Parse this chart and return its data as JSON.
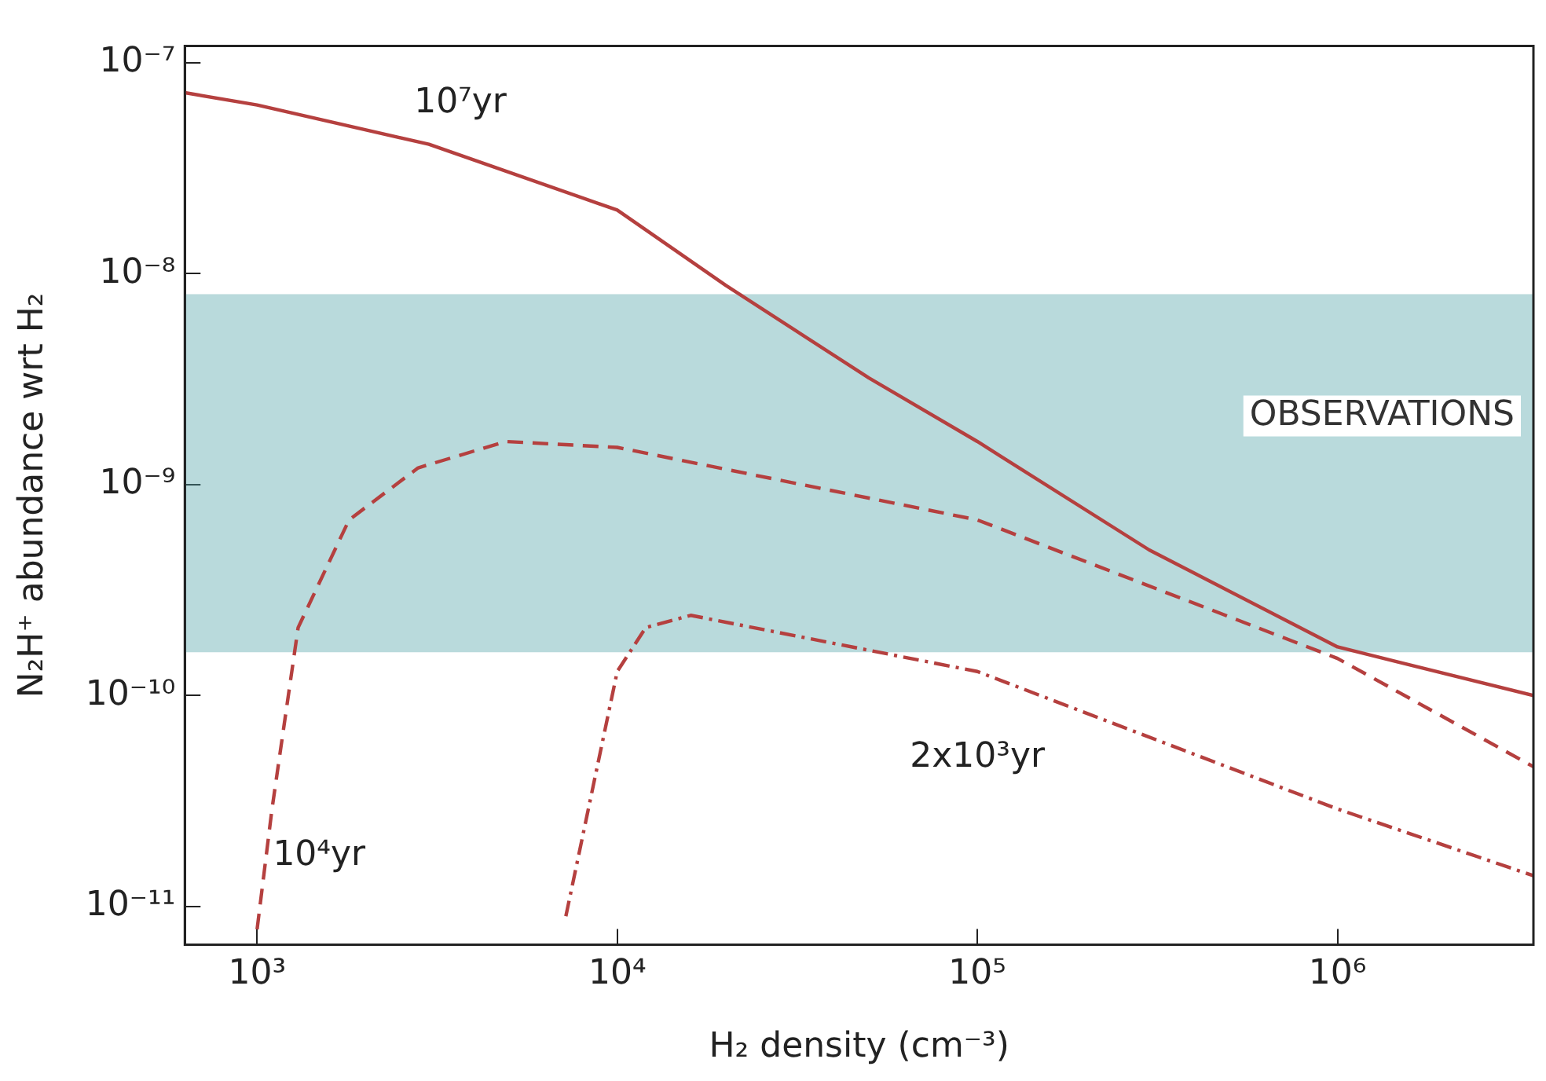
{
  "chart_data": {
    "type": "line",
    "xlabel": "H₂ density (cm⁻³)",
    "ylabel": "N₂H⁺ abundance wrt H₂",
    "log": "xy",
    "grid": false,
    "legend": false,
    "marker": "none",
    "xlim": [
      630,
      3500000
    ],
    "ylim": [
      6.6e-12,
      1.2e-07
    ],
    "xticks": [
      {
        "value": 1000,
        "label": "10³"
      },
      {
        "value": 10000,
        "label": "10⁴"
      },
      {
        "value": 100000,
        "label": "10⁵"
      },
      {
        "value": 1000000,
        "label": "10⁶"
      }
    ],
    "yticks": [
      {
        "value": 1e-11,
        "label": "10⁻¹¹"
      },
      {
        "value": 1e-10,
        "label": "10⁻¹⁰"
      },
      {
        "value": 1e-09,
        "label": "10⁻⁹"
      },
      {
        "value": 1e-08,
        "label": "10⁻⁸"
      },
      {
        "value": 1e-07,
        "label": "10⁻⁷"
      }
    ],
    "series": [
      {
        "name": "10⁷yr",
        "color": "#b5403f",
        "line_style": "solid",
        "x": [
          630,
          1000,
          3000,
          10000,
          20000,
          50000,
          100000,
          300000,
          1000000,
          3500000
        ],
        "values": [
          7.2e-08,
          6.3e-08,
          4.1e-08,
          2e-08,
          8.8e-09,
          3.2e-09,
          1.6e-09,
          4.9e-10,
          1.7e-10,
          1e-10
        ]
      },
      {
        "name": "10⁴yr",
        "color": "#b5403f",
        "line_style": "dashed",
        "x": [
          1000,
          1100,
          1300,
          1800,
          2800,
          4900,
          10000,
          100000,
          1000000,
          3500000
        ],
        "values": [
          7.8e-12,
          2.9e-11,
          2.1e-10,
          6.8e-10,
          1.2e-09,
          1.6e-09,
          1.5e-09,
          6.8e-10,
          1.5e-10,
          4.6e-11
        ]
      },
      {
        "name": "2x10³yr",
        "color": "#b5403f",
        "line_style": "dashdot",
        "x": [
          7200,
          10000,
          12000,
          16000,
          100000,
          1000000,
          3500000
        ],
        "values": [
          9e-12,
          1.3e-10,
          2.1e-10,
          2.4e-10,
          1.3e-10,
          2.9e-11,
          1.4e-11
        ]
      }
    ],
    "bands": [
      {
        "axis": "y",
        "from": 1.6e-10,
        "to": 8e-09,
        "label": "OBSERVATIONS",
        "color": "#4fa3a8"
      }
    ]
  }
}
